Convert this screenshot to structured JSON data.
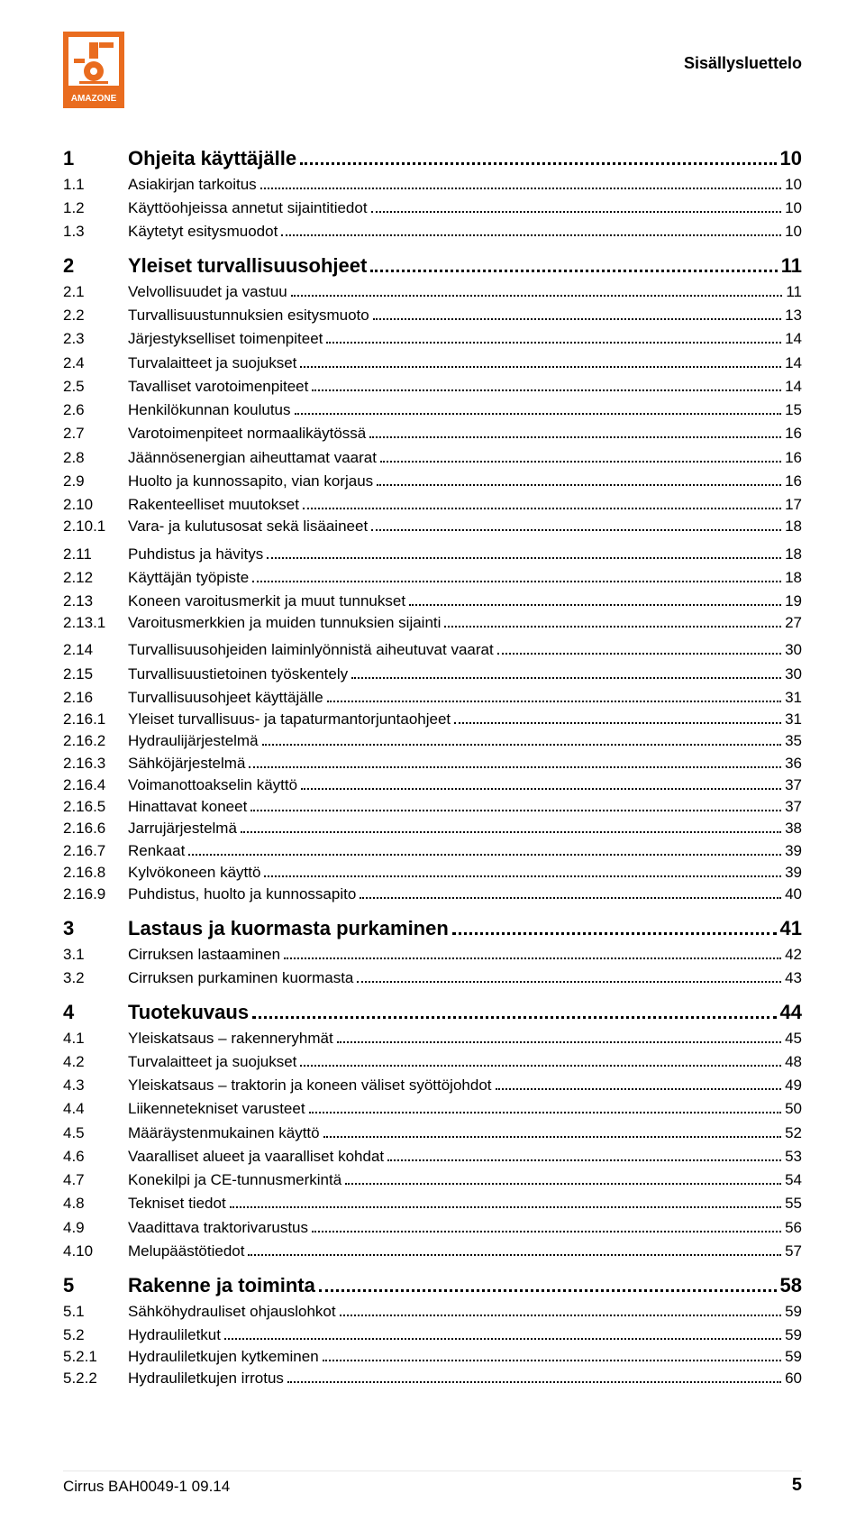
{
  "header": {
    "title": "Sisällysluettelo"
  },
  "logo": {
    "brand_text": "AMAZONE",
    "bg_color": "#e96c1f",
    "fg_color": "#ffffff"
  },
  "toc": [
    {
      "num": "1",
      "label": "Ohjeita käyttäjälle",
      "page": "10",
      "level": 1
    },
    {
      "num": "1.1",
      "label": "Asiakirjan tarkoitus",
      "page": "10",
      "level": 2
    },
    {
      "num": "1.2",
      "label": "Käyttöohjeissa annetut sijaintitiedot",
      "page": "10",
      "level": 2
    },
    {
      "num": "1.3",
      "label": "Käytetyt esitysmuodot",
      "page": "10",
      "level": 2
    },
    {
      "num": "2",
      "label": "Yleiset turvallisuusohjeet",
      "page": "11",
      "level": 1
    },
    {
      "num": "2.1",
      "label": "Velvollisuudet ja vastuu",
      "page": "11",
      "level": 2
    },
    {
      "num": "2.2",
      "label": "Turvallisuustunnuksien esitysmuoto",
      "page": "13",
      "level": 2
    },
    {
      "num": "2.3",
      "label": "Järjestykselliset toimenpiteet",
      "page": "14",
      "level": 2
    },
    {
      "num": "2.4",
      "label": "Turvalaitteet ja suojukset",
      "page": "14",
      "level": 2
    },
    {
      "num": "2.5",
      "label": "Tavalliset varotoimenpiteet",
      "page": "14",
      "level": 2
    },
    {
      "num": "2.6",
      "label": "Henkilökunnan koulutus",
      "page": "15",
      "level": 2
    },
    {
      "num": "2.7",
      "label": "Varotoimenpiteet normaalikäytössä",
      "page": "16",
      "level": 2
    },
    {
      "num": "2.8",
      "label": "Jäännösenergian aiheuttamat vaarat",
      "page": "16",
      "level": 2
    },
    {
      "num": "2.9",
      "label": "Huolto ja kunnossapito, vian korjaus",
      "page": "16",
      "level": 2
    },
    {
      "num": "2.10",
      "label": "Rakenteelliset muutokset",
      "page": "17",
      "level": 2
    },
    {
      "num": "2.10.1",
      "label": "Vara- ja kulutusosat sekä lisäaineet",
      "page": "18",
      "level": 3
    },
    {
      "num": "2.11",
      "label": "Puhdistus ja hävitys",
      "page": "18",
      "level": 2,
      "gap": true
    },
    {
      "num": "2.12",
      "label": "Käyttäjän työpiste",
      "page": "18",
      "level": 2
    },
    {
      "num": "2.13",
      "label": "Koneen varoitusmerkit ja muut tunnukset",
      "page": "19",
      "level": 2
    },
    {
      "num": "2.13.1",
      "label": "Varoitusmerkkien ja muiden tunnuksien sijainti",
      "page": "27",
      "level": 3
    },
    {
      "num": "2.14",
      "label": "Turvallisuusohjeiden laiminlyönnistä aiheutuvat vaarat",
      "page": "30",
      "level": 2,
      "gap": true
    },
    {
      "num": "2.15",
      "label": "Turvallisuustietoinen työskentely",
      "page": "30",
      "level": 2
    },
    {
      "num": "2.16",
      "label": "Turvallisuusohjeet käyttäjälle",
      "page": "31",
      "level": 2
    },
    {
      "num": "2.16.1",
      "label": "Yleiset turvallisuus- ja tapaturmantorjuntaohjeet",
      "page": "31",
      "level": 3
    },
    {
      "num": "2.16.2",
      "label": "Hydraulijärjestelmä",
      "page": "35",
      "level": 3
    },
    {
      "num": "2.16.3",
      "label": "Sähköjärjestelmä",
      "page": "36",
      "level": 3
    },
    {
      "num": "2.16.4",
      "label": "Voimanottoakselin käyttö",
      "page": "37",
      "level": 3
    },
    {
      "num": "2.16.5",
      "label": "Hinattavat koneet",
      "page": "37",
      "level": 3
    },
    {
      "num": "2.16.6",
      "label": "Jarrujärjestelmä",
      "page": "38",
      "level": 3
    },
    {
      "num": "2.16.7",
      "label": "Renkaat",
      "page": "39",
      "level": 3
    },
    {
      "num": "2.16.8",
      "label": "Kylvökoneen käyttö",
      "page": "39",
      "level": 3
    },
    {
      "num": "2.16.9",
      "label": "Puhdistus, huolto ja kunnossapito",
      "page": "40",
      "level": 3
    },
    {
      "num": "3",
      "label": "Lastaus ja kuormasta purkaminen",
      "page": "41",
      "level": 1
    },
    {
      "num": "3.1",
      "label": "Cirruksen lastaaminen",
      "page": "42",
      "level": 2
    },
    {
      "num": "3.2",
      "label": "Cirruksen purkaminen kuormasta",
      "page": "43",
      "level": 2
    },
    {
      "num": "4",
      "label": "Tuotekuvaus",
      "page": "44",
      "level": 1
    },
    {
      "num": "4.1",
      "label": "Yleiskatsaus – rakenneryhmät",
      "page": "45",
      "level": 2
    },
    {
      "num": "4.2",
      "label": "Turvalaitteet ja suojukset",
      "page": "48",
      "level": 2
    },
    {
      "num": "4.3",
      "label": "Yleiskatsaus – traktorin ja koneen väliset syöttöjohdot",
      "page": "49",
      "level": 2
    },
    {
      "num": "4.4",
      "label": "Liikennetekniset varusteet",
      "page": "50",
      "level": 2
    },
    {
      "num": "4.5",
      "label": "Määräystenmukainen käyttö",
      "page": "52",
      "level": 2
    },
    {
      "num": "4.6",
      "label": "Vaaralliset alueet ja vaaralliset kohdat",
      "page": "53",
      "level": 2
    },
    {
      "num": "4.7",
      "label": "Konekilpi ja CE-tunnusmerkintä",
      "page": "54",
      "level": 2
    },
    {
      "num": "4.8",
      "label": "Tekniset tiedot",
      "page": "55",
      "level": 2
    },
    {
      "num": "4.9",
      "label": "Vaadittava traktorivarustus",
      "page": "56",
      "level": 2
    },
    {
      "num": "4.10",
      "label": "Melupäästötiedot",
      "page": "57",
      "level": 2
    },
    {
      "num": "5",
      "label": "Rakenne ja toiminta",
      "page": "58",
      "level": 1
    },
    {
      "num": "5.1",
      "label": "Sähköhydrauliset ohjauslohkot",
      "page": "59",
      "level": 2
    },
    {
      "num": "5.2",
      "label": "Hydrauliletkut",
      "page": "59",
      "level": 2
    },
    {
      "num": "5.2.1",
      "label": "Hydrauliletkujen kytkeminen",
      "page": "59",
      "level": 3
    },
    {
      "num": "5.2.2",
      "label": "Hydrauliletkujen irrotus",
      "page": "60",
      "level": 3
    }
  ],
  "footer": {
    "doc_id": "Cirrus  BAH0049-1  09.14",
    "page_number": "5"
  }
}
